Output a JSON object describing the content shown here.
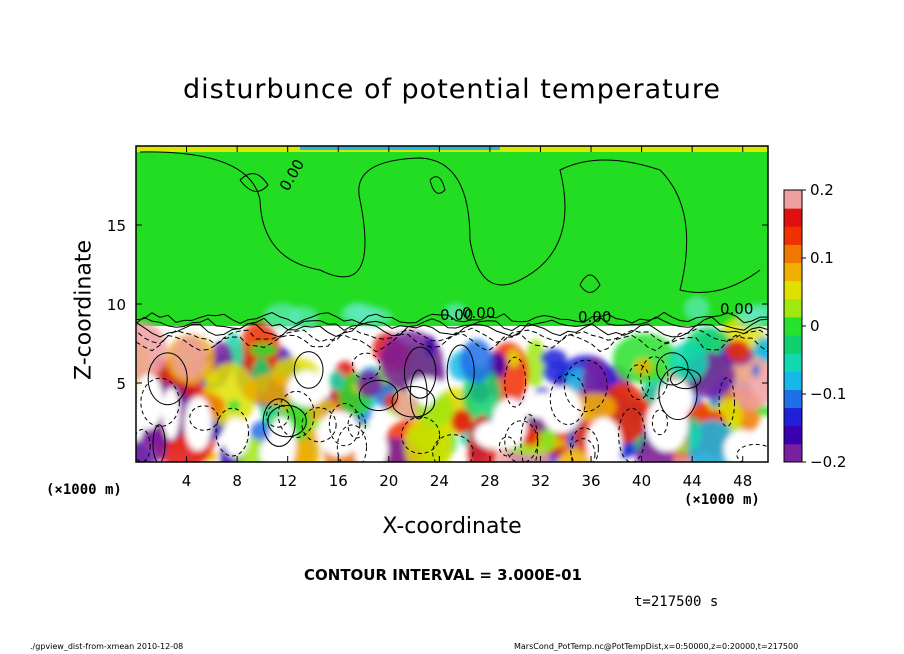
{
  "chart_data": {
    "type": "heatmap",
    "title": "disturbunce of potential temperature",
    "xlabel": "X-coordinate",
    "ylabel": "Z-coordinate",
    "x_unit_left": "(×1000 m)",
    "x_unit_right": "(×1000 m)",
    "xlim": [
      0,
      50
    ],
    "ylim": [
      0,
      20
    ],
    "x_ticks": [
      4,
      8,
      12,
      16,
      20,
      24,
      28,
      32,
      36,
      40,
      44,
      48
    ],
    "y_ticks": [
      5,
      10,
      15
    ],
    "colorbar": {
      "vmin": -0.2,
      "vmax": 0.2,
      "ticks": [
        "0.2",
        "0.1",
        "0",
        "-0.1",
        "-0.2"
      ],
      "colors": [
        "#7a1fa0",
        "#3a00b0",
        "#1f20d8",
        "#1f6fe8",
        "#15b8e8",
        "#12d8b0",
        "#10d070",
        "#28e030",
        "#a0e810",
        "#e0e000",
        "#f0b000",
        "#f07800",
        "#f03000",
        "#e01010",
        "#f0a0a0"
      ]
    },
    "contour_labels": [
      "0.00",
      "0.00",
      "0.00",
      "0.00",
      "0.00"
    ],
    "contour_interval_text": "CONTOUR INTERVAL = 3.000E-01",
    "time_text": "t=217500 s"
  },
  "footer": {
    "left": "./gpview_dist-from-xmean   2010-12-08",
    "right": "MarsCond_PotTemp.nc@PotTempDist,x=0:50000,z=0:20000,t=217500"
  }
}
